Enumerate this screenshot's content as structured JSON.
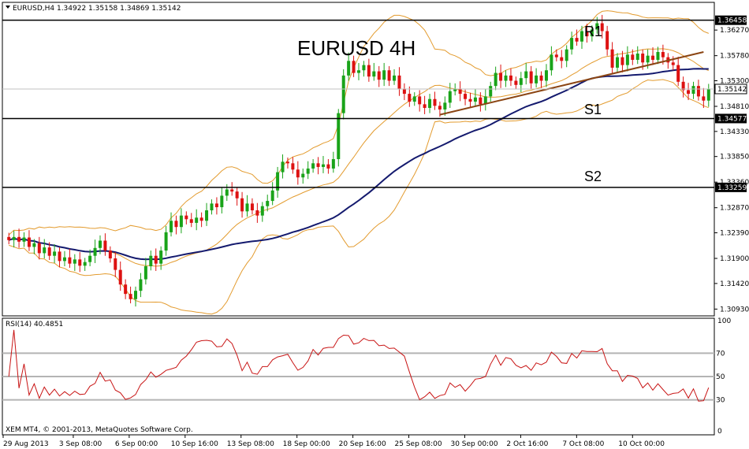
{
  "header": {
    "symbol_line": "EURUSD,H4  1.34922 1.35158 1.34869 1.35142",
    "rsi_label": "RSI(14) 40.4851",
    "copyright": "XEM MT4, © 2001-2013, MetaQuotes Software Corp."
  },
  "overlay": {
    "title": "EURUSD 4H",
    "r1": "R1",
    "s1": "S1",
    "s2": "S2"
  },
  "colors": {
    "bull": "#19a319",
    "bear": "#dd1111",
    "band": "#e39b2e",
    "ma": "#141a6e",
    "trend": "#8b4513",
    "rsi": "#c81414",
    "level_line": "#000000",
    "rsi_level": "#b4b4b4"
  },
  "chart_data": {
    "type": "candlestick",
    "symbol": "EURUSD",
    "timeframe": "H4",
    "ylim": [
      1.308,
      1.368
    ],
    "price_ticks": [
      "1.36270",
      "1.35780",
      "1.35300",
      "1.34810",
      "1.34330",
      "1.33850",
      "1.33360",
      "1.32870",
      "1.32390",
      "1.31900",
      "1.31420",
      "1.30930"
    ],
    "x_tick_labels": [
      "29 Aug 2013",
      "3 Sep 08:00",
      "6 Sep 00:00",
      "10 Sep 16:00",
      "13 Sep 08:00",
      "18 Sep 00:00",
      "20 Sep 16:00",
      "25 Sep 08:00",
      "30 Sep 00:00",
      "2 Oct 16:00",
      "7 Oct 08:00",
      "10 Oct 00:00"
    ],
    "levels": [
      {
        "name": "R1",
        "value": 1.36458,
        "label": "1.36458"
      },
      {
        "name": "S1",
        "value": 1.34577,
        "label": "1.34577"
      },
      {
        "name": "S2",
        "value": 1.33259,
        "label": "1.33259"
      }
    ],
    "current_price": {
      "value": 1.35142,
      "label": "1.35142"
    },
    "closes": [
      1.3225,
      1.3231,
      1.3222,
      1.323,
      1.3212,
      1.3219,
      1.32,
      1.3211,
      1.3195,
      1.3203,
      1.3185,
      1.3192,
      1.318,
      1.3188,
      1.3176,
      1.3183,
      1.3195,
      1.321,
      1.3224,
      1.3205,
      1.319,
      1.3168,
      1.314,
      1.3122,
      1.3112,
      1.3128,
      1.315,
      1.3175,
      1.3195,
      1.318,
      1.3205,
      1.324,
      1.3262,
      1.325,
      1.3272,
      1.3265,
      1.3258,
      1.3268,
      1.3262,
      1.3282,
      1.3295,
      1.3288,
      1.331,
      1.3322,
      1.3318,
      1.3305,
      1.328,
      1.3295,
      1.3282,
      1.3272,
      1.329,
      1.33,
      1.332,
      1.3355,
      1.3375,
      1.3372,
      1.336,
      1.3345,
      1.3352,
      1.3362,
      1.3372,
      1.3365,
      1.337,
      1.3362,
      1.338,
      1.3468,
      1.354,
      1.3568,
      1.3545,
      1.355,
      1.356,
      1.3538,
      1.3548,
      1.3532,
      1.355,
      1.353,
      1.354,
      1.3515,
      1.3505,
      1.349,
      1.35,
      1.3485,
      1.3478,
      1.3495,
      1.3482,
      1.3475,
      1.3488,
      1.351,
      1.3515,
      1.3505,
      1.3495,
      1.349,
      1.3498,
      1.3485,
      1.35,
      1.352,
      1.3545,
      1.353,
      1.354,
      1.353,
      1.3522,
      1.3535,
      1.3548,
      1.3525,
      1.354,
      1.353,
      1.355,
      1.358,
      1.3575,
      1.3568,
      1.359,
      1.3612,
      1.3605,
      1.3625,
      1.3615,
      1.3628,
      1.364,
      1.3625,
      1.359,
      1.3555,
      1.3575,
      1.356,
      1.358,
      1.357,
      1.3582,
      1.3565,
      1.3578,
      1.357,
      1.3585,
      1.3575,
      1.3565,
      1.356,
      1.3528,
      1.3512,
      1.3505,
      1.352,
      1.35,
      1.3492,
      1.3514
    ],
    "series": [
      {
        "name": "RSI(14)",
        "final_value": 40.4851
      }
    ],
    "rsi_levels": [
      70,
      50,
      30
    ],
    "rsi_range": [
      0,
      100
    ]
  }
}
